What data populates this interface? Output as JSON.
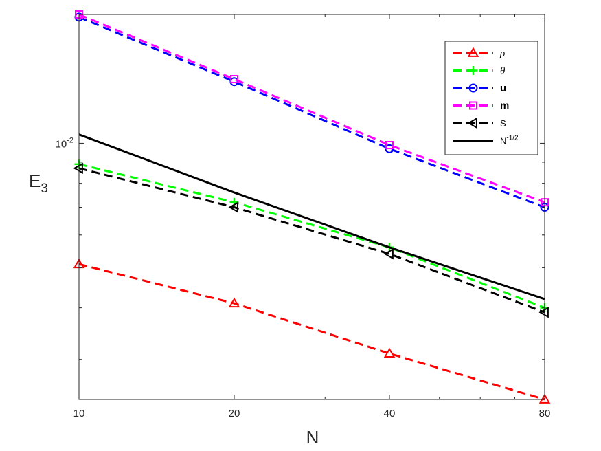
{
  "chart_data": {
    "type": "line",
    "xscale": "log",
    "yscale": "log",
    "xlabel": "N",
    "ylabel": "E",
    "ylabel_sub": "3",
    "xlim": [
      10,
      80
    ],
    "ylim": [
      0.0024,
      0.0205
    ],
    "xticks": [
      10,
      20,
      40,
      80
    ],
    "xtick_labels": [
      "10",
      "20",
      "40",
      "80"
    ],
    "ytick_major": [
      {
        "value": 0.01,
        "base": "10",
        "exp": "-2"
      }
    ],
    "ytick_minor": [
      0.003,
      0.004,
      0.005,
      0.006,
      0.007,
      0.008,
      0.009,
      0.02
    ],
    "legend_position": "top-right",
    "x": [
      10,
      20,
      40,
      80
    ],
    "series": [
      {
        "name": "ρ",
        "style": "italic",
        "color": "#ff0000",
        "dash": "dashed",
        "marker": "triangle-up",
        "values": [
          0.0051,
          0.0041,
          0.0031,
          0.0024
        ]
      },
      {
        "name": "θ",
        "style": "italic",
        "color": "#00ff00",
        "dash": "dashed",
        "marker": "plus",
        "values": [
          0.0089,
          0.0072,
          0.0056,
          0.004
        ]
      },
      {
        "name": "u",
        "style": "bold",
        "color": "#0000ff",
        "dash": "dashed",
        "marker": "circle",
        "values": [
          0.0202,
          0.0141,
          0.0097,
          0.007
        ]
      },
      {
        "name": "m",
        "style": "bold",
        "color": "#ff00ff",
        "dash": "dashed",
        "marker": "square",
        "values": [
          0.0205,
          0.0143,
          0.0099,
          0.0072
        ]
      },
      {
        "name": "S",
        "style": "normal",
        "color": "#000000",
        "dash": "dashed",
        "marker": "triangle-left",
        "values": [
          0.0087,
          0.007,
          0.0054,
          0.0039
        ]
      },
      {
        "name": "N",
        "name_sup": "-1/2",
        "style": "normal",
        "color": "#000000",
        "dash": "solid",
        "marker": "none",
        "values": [
          0.0105,
          0.0076,
          0.0056,
          0.0042
        ]
      }
    ]
  }
}
